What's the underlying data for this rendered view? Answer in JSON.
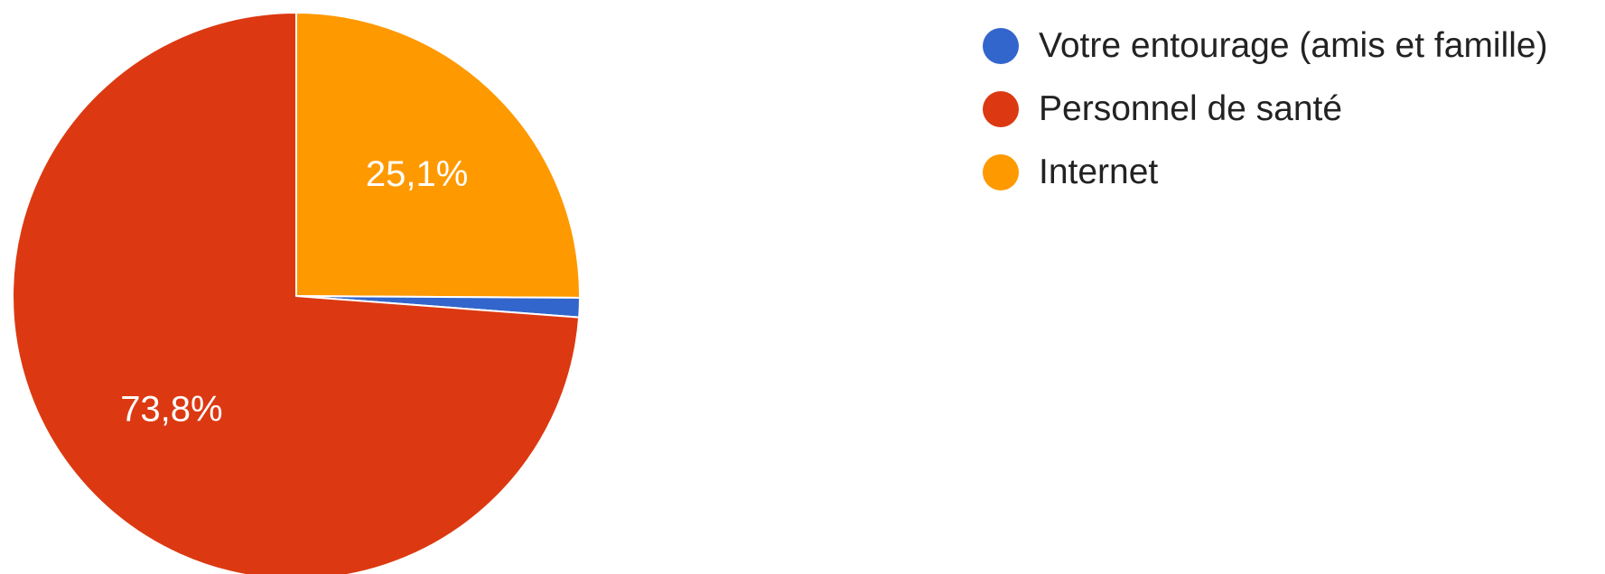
{
  "chart_data": {
    "type": "pie",
    "title": "",
    "categories": [
      "Votre entourage (amis et famille)",
      "Personnel de santé",
      "Internet"
    ],
    "values": [
      1.1,
      73.8,
      25.1
    ],
    "data_labels": [
      "",
      "73,8%",
      "25,1%"
    ],
    "colors": [
      "#3366cc",
      "#dc3912",
      "#ff9900"
    ],
    "legend_position": "right",
    "start_angle": "12 o'clock",
    "direction": "counterclockwise"
  }
}
